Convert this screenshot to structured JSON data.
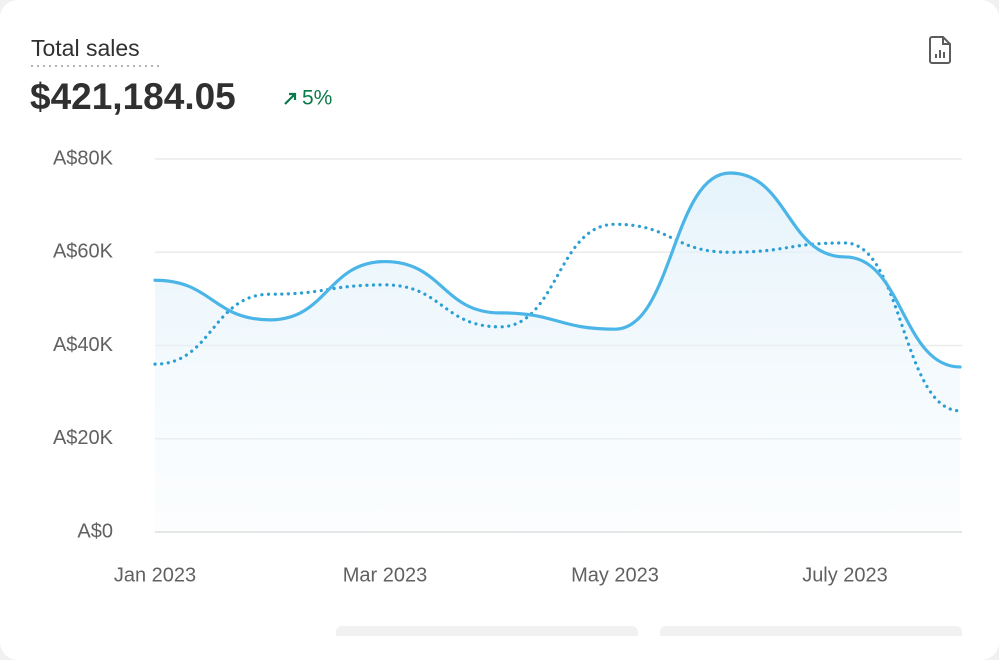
{
  "header": {
    "title": "Total sales",
    "total": "$421,184.05",
    "change": "5%"
  },
  "chart_data": {
    "type": "line",
    "categories": [
      "Jan 2023",
      null,
      "Mar 2023",
      null,
      "May 2023",
      null,
      "July 2023",
      null
    ],
    "series": [
      {
        "color": "#4cb5e8",
        "style": "solid",
        "values": [
          54000,
          45500,
          58000,
          47000,
          43500,
          77000,
          59000,
          35400
        ]
      },
      {
        "color": "#2a9fd4",
        "style": "dotted",
        "values": [
          36000,
          51000,
          53000,
          44000,
          66000,
          60000,
          62000,
          26000
        ]
      }
    ],
    "ylim": [
      0,
      80000
    ],
    "yticks": [
      {
        "value": 0,
        "label": "A$0"
      },
      {
        "value": 20000,
        "label": "A$20K"
      },
      {
        "value": 40000,
        "label": "A$40K"
      },
      {
        "value": 60000,
        "label": "A$60K"
      },
      {
        "value": 80000,
        "label": "A$80K"
      }
    ],
    "grid": true
  }
}
